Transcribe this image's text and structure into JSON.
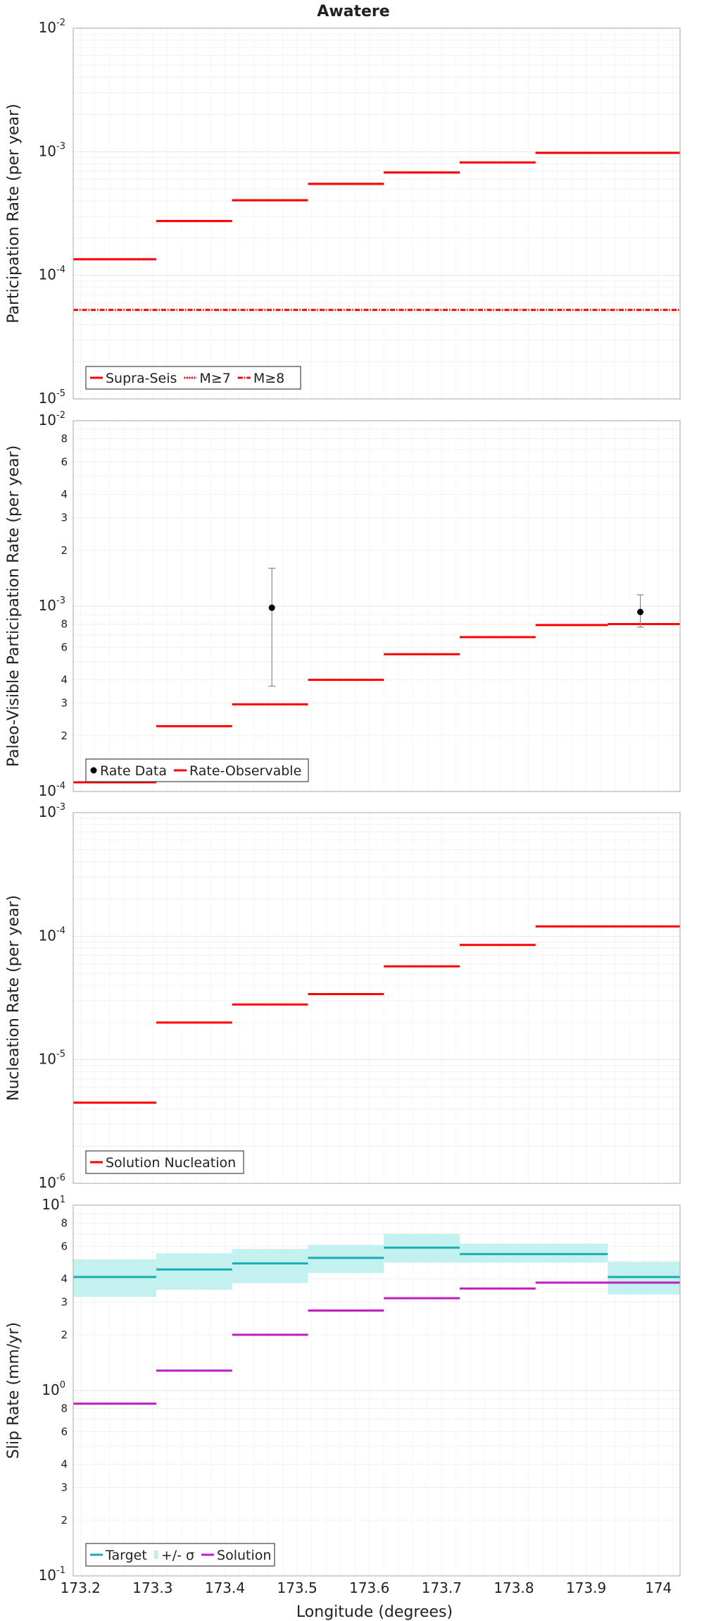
{
  "chart_data": [
    {
      "type": "line",
      "title": "Awatere",
      "xlabel": "",
      "ylabel": "Participation Rate (per year)",
      "yscale": "log",
      "ylim": [
        1e-05,
        0.01
      ],
      "xlim": [
        173.19,
        174.03
      ],
      "legend": "bottom-left",
      "legend_entries": [
        "Supra-Seis",
        "M≥7",
        "M≥8"
      ],
      "series": [
        {
          "name": "Supra-Seis",
          "color": "#ff0000",
          "style": "solid",
          "segments": [
            [
              173.19,
              173.305,
              0.000135
            ],
            [
              173.305,
              173.41,
              0.000275
            ],
            [
              173.41,
              173.515,
              0.000405
            ],
            [
              173.515,
              173.62,
              0.00055
            ],
            [
              173.62,
              173.725,
              0.00068
            ],
            [
              173.725,
              173.83,
              0.00082
            ],
            [
              173.83,
              174.03,
              0.00098
            ]
          ]
        },
        {
          "name": "M≥7",
          "color": "#ff0000",
          "style": "dotted",
          "segments": [
            [
              173.19,
              173.305,
              0.000135
            ],
            [
              173.305,
              173.41,
              0.000275
            ],
            [
              173.41,
              173.515,
              0.000405
            ],
            [
              173.515,
              173.62,
              0.00055
            ],
            [
              173.62,
              173.725,
              0.00068
            ],
            [
              173.725,
              173.83,
              0.00082
            ],
            [
              173.83,
              174.03,
              0.00098
            ]
          ]
        },
        {
          "name": "M≥8",
          "color": "#ff0000",
          "style": "dashdot",
          "segments": [
            [
              173.19,
              174.03,
              5.25e-05
            ]
          ]
        }
      ]
    },
    {
      "type": "line",
      "title": "",
      "xlabel": "",
      "ylabel": "Paleo-Visible Participation Rate (per year)",
      "yscale": "log",
      "ylim": [
        0.0001,
        0.01
      ],
      "xlim": [
        173.19,
        174.03
      ],
      "legend": "bottom-left",
      "legend_entries": [
        "Rate Data",
        "Rate-Observable"
      ],
      "series": [
        {
          "name": "Rate-Observable",
          "color": "#ff0000",
          "style": "solid",
          "segments": [
            [
              173.19,
              173.305,
              0.000112
            ],
            [
              173.305,
              173.41,
              0.000225
            ],
            [
              173.41,
              173.515,
              0.000295
            ],
            [
              173.515,
              173.62,
              0.0004
            ],
            [
              173.62,
              173.725,
              0.00055
            ],
            [
              173.725,
              173.83,
              0.00068
            ],
            [
              173.83,
              173.93,
              0.00079
            ],
            [
              173.93,
              174.03,
              0.0008
            ]
          ]
        },
        {
          "name": "Rate Data",
          "color": "#000000",
          "style": "points",
          "points": [
            {
              "x": 173.465,
              "y": 0.00098,
              "lo": 0.00037,
              "hi": 0.0016
            },
            {
              "x": 173.975,
              "y": 0.00093,
              "lo": 0.00077,
              "hi": 0.00115
            }
          ]
        }
      ]
    },
    {
      "type": "line",
      "title": "",
      "xlabel": "",
      "ylabel": "Nucleation Rate (per year)",
      "yscale": "log",
      "ylim": [
        1e-06,
        0.001
      ],
      "xlim": [
        173.19,
        174.03
      ],
      "legend": "bottom-left",
      "legend_entries": [
        "Solution Nucleation"
      ],
      "series": [
        {
          "name": "Solution Nucleation",
          "color": "#ff0000",
          "style": "solid",
          "segments": [
            [
              173.19,
              173.305,
              4.5e-06
            ],
            [
              173.305,
              173.41,
              2e-05
            ],
            [
              173.41,
              173.515,
              2.8e-05
            ],
            [
              173.515,
              173.62,
              3.4e-05
            ],
            [
              173.62,
              173.725,
              5.7e-05
            ],
            [
              173.725,
              173.83,
              8.5e-05
            ],
            [
              173.83,
              174.03,
              0.00012
            ]
          ]
        }
      ]
    },
    {
      "type": "line",
      "title": "",
      "xlabel": "Longitude (degrees)",
      "ylabel": "Slip Rate (mm/yr)",
      "yscale": "log",
      "ylim": [
        0.1,
        10
      ],
      "xlim": [
        173.19,
        174.03
      ],
      "legend": "bottom-left",
      "legend_entries": [
        "Target",
        "+/- σ",
        "Solution"
      ],
      "series": [
        {
          "name": "Target",
          "color": "#1aaeae",
          "style": "solid",
          "segments": [
            [
              173.19,
              173.305,
              4.1
            ],
            [
              173.305,
              173.41,
              4.5
            ],
            [
              173.41,
              173.515,
              4.85
            ],
            [
              173.515,
              173.62,
              5.2
            ],
            [
              173.62,
              173.725,
              5.9
            ],
            [
              173.725,
              173.93,
              5.45
            ],
            [
              173.93,
              174.03,
              4.1
            ]
          ]
        },
        {
          "name": "+/- σ",
          "color": "#bff0ef",
          "style": "band",
          "bands": [
            [
              173.19,
              173.305,
              3.2,
              5.1
            ],
            [
              173.305,
              173.41,
              3.5,
              5.5
            ],
            [
              173.41,
              173.515,
              3.8,
              5.8
            ],
            [
              173.515,
              173.62,
              4.3,
              6.1
            ],
            [
              173.62,
              173.725,
              4.9,
              7.0
            ],
            [
              173.725,
              173.93,
              4.9,
              6.2
            ],
            [
              173.93,
              174.03,
              3.3,
              4.95
            ]
          ]
        },
        {
          "name": "Solution",
          "color": "#c21bc2",
          "style": "solid",
          "segments": [
            [
              173.19,
              173.305,
              0.85
            ],
            [
              173.305,
              173.41,
              1.28
            ],
            [
              173.41,
              173.515,
              2.0
            ],
            [
              173.515,
              173.62,
              2.7
            ],
            [
              173.62,
              173.725,
              3.15
            ],
            [
              173.725,
              173.83,
              3.55
            ],
            [
              173.83,
              174.03,
              3.82
            ]
          ]
        }
      ]
    }
  ],
  "x_ticks": [
    "173.2",
    "173.3",
    "173.4",
    "173.5",
    "173.6",
    "173.7",
    "173.8",
    "173.9",
    "174"
  ]
}
